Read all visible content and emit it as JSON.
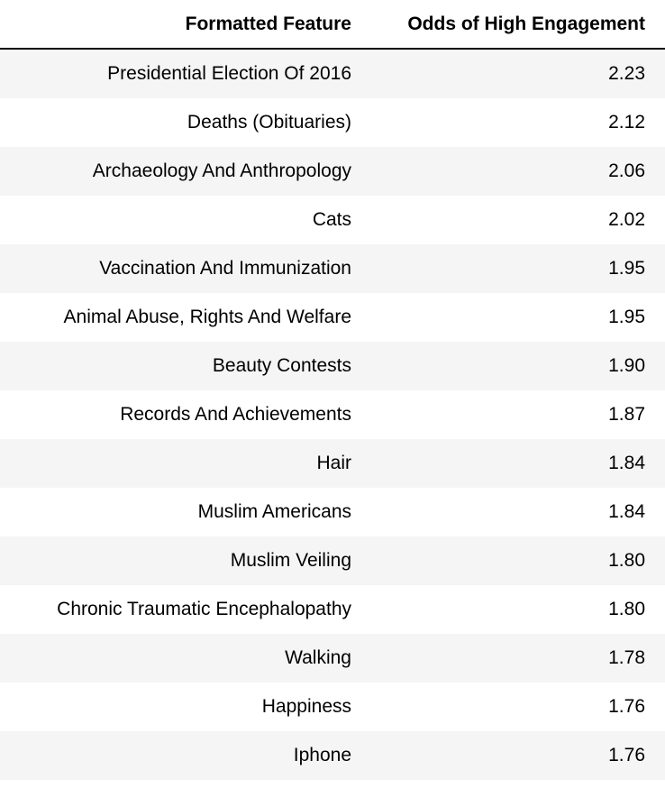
{
  "table": {
    "headers": {
      "feature": "Formatted Feature",
      "odds": "Odds of High Engagement"
    },
    "rows": [
      {
        "feature": "Presidential Election Of 2016",
        "odds": "2.23"
      },
      {
        "feature": "Deaths (Obituaries)",
        "odds": "2.12"
      },
      {
        "feature": "Archaeology And Anthropology",
        "odds": "2.06"
      },
      {
        "feature": "Cats",
        "odds": "2.02"
      },
      {
        "feature": "Vaccination And Immunization",
        "odds": "1.95"
      },
      {
        "feature": "Animal Abuse, Rights And Welfare",
        "odds": "1.95"
      },
      {
        "feature": "Beauty Contests",
        "odds": "1.90"
      },
      {
        "feature": "Records And Achievements",
        "odds": "1.87"
      },
      {
        "feature": "Hair",
        "odds": "1.84"
      },
      {
        "feature": "Muslim Americans",
        "odds": "1.84"
      },
      {
        "feature": "Muslim Veiling",
        "odds": "1.80"
      },
      {
        "feature": "Chronic Traumatic Encephalopathy",
        "odds": "1.80"
      },
      {
        "feature": "Walking",
        "odds": "1.78"
      },
      {
        "feature": "Happiness",
        "odds": "1.76"
      },
      {
        "feature": "Iphone",
        "odds": "1.76"
      }
    ]
  },
  "colors": {
    "stripe": "#f5f5f5",
    "background": "#ffffff",
    "header_rule": "#000000"
  }
}
